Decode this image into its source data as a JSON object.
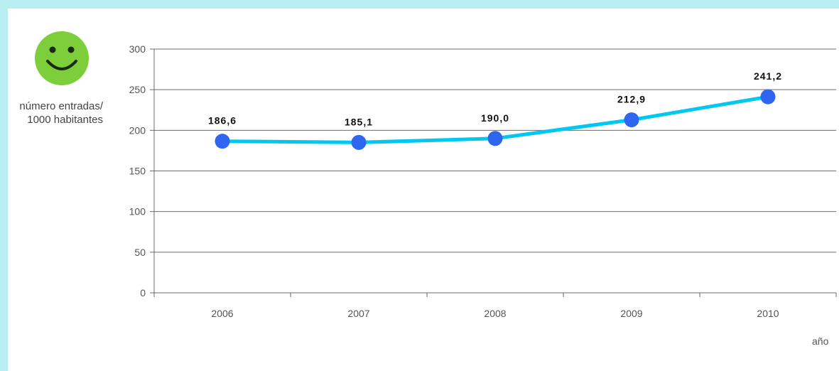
{
  "icon": "smiley-face-icon",
  "colors": {
    "background": "#b8eef0",
    "line": "#00c8f0",
    "marker": "#2e66f0",
    "smiley": "#7ccf3a"
  },
  "chart_data": {
    "type": "line",
    "title": "",
    "ylabel": "número entradas/1000 habitantes",
    "xlabel": "año",
    "categories": [
      "2006",
      "2007",
      "2008",
      "2009",
      "2010"
    ],
    "series": [
      {
        "values": [
          186.6,
          185.1,
          190.0,
          212.9,
          241.2
        ]
      }
    ],
    "data_labels": [
      "186,6",
      "185,1",
      "190,0",
      "212,9",
      "241,2"
    ],
    "yticks": [
      "0",
      "50",
      "100",
      "150",
      "200",
      "250",
      "300"
    ],
    "ylim": [
      0,
      300
    ],
    "grid": true,
    "legend": "none"
  }
}
